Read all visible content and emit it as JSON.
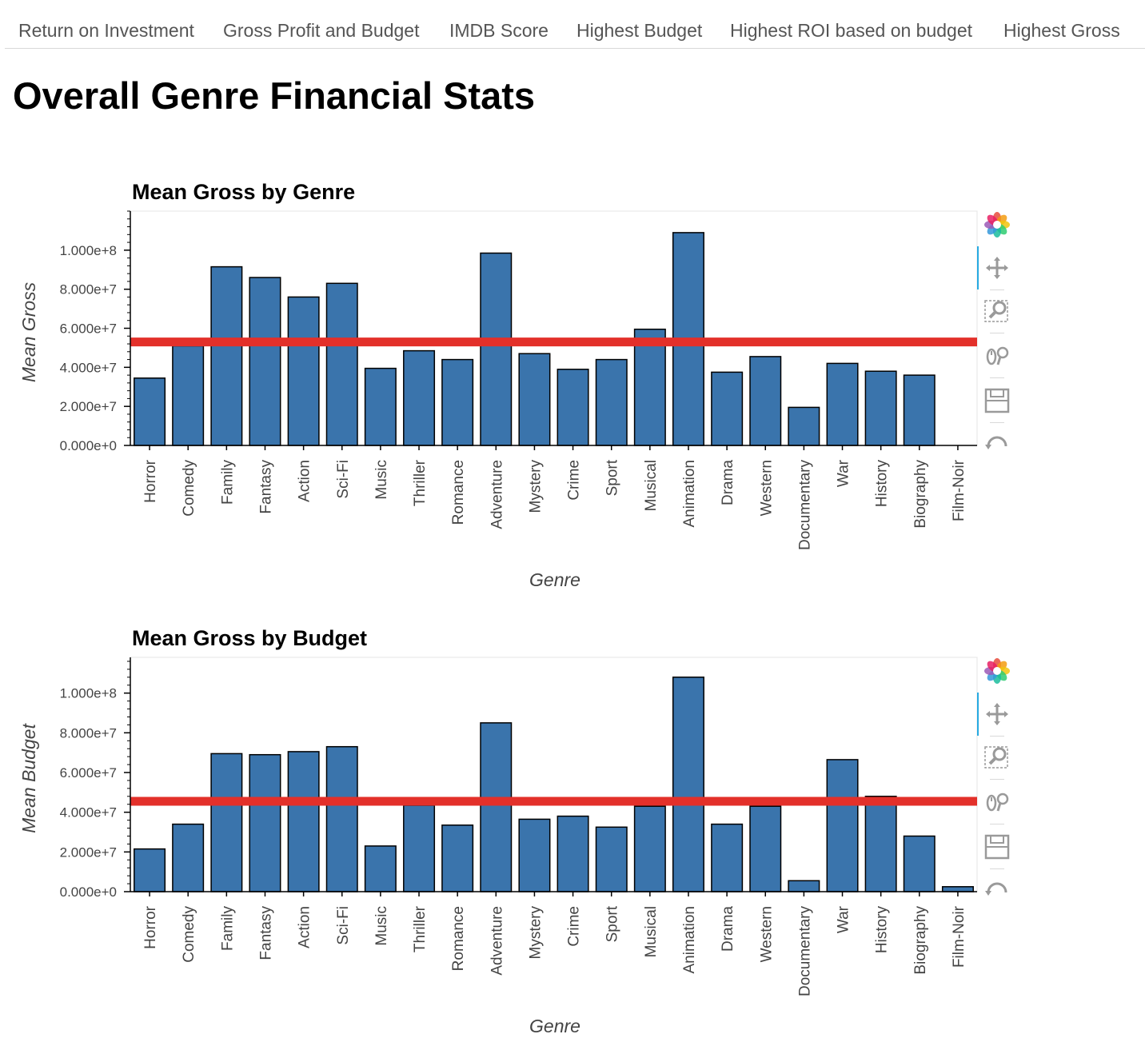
{
  "nav": {
    "tabs": [
      {
        "label": "Return on Investment"
      },
      {
        "label": "Gross Profit and Budget"
      },
      {
        "label": "IMDB Score"
      },
      {
        "label": "Highest Budget"
      },
      {
        "label": "Highest ROI based on budget"
      },
      {
        "label": "Highest Gross"
      }
    ]
  },
  "page": {
    "title": "Overall Genre Financial Stats"
  },
  "toolbar_icons": [
    "bokeh-logo-icon",
    "pan-icon",
    "box-zoom-icon",
    "wheel-zoom-icon",
    "save-icon",
    "reset-icon"
  ],
  "colors": {
    "bar_fill": "#3a74ac",
    "bar_stroke": "#000000",
    "mean_line": "#e3302a",
    "tab_text": "#555555"
  },
  "chart_data": [
    {
      "type": "bar",
      "title": "Mean Gross by Genre",
      "xlabel": "Genre",
      "ylabel": "Mean Gross",
      "categories": [
        "Horror",
        "Comedy",
        "Family",
        "Fantasy",
        "Action",
        "Sci-Fi",
        "Music",
        "Thriller",
        "Romance",
        "Adventure",
        "Mystery",
        "Crime",
        "Sport",
        "Musical",
        "Animation",
        "Drama",
        "Western",
        "Documentary",
        "War",
        "History",
        "Biography",
        "Film-Noir"
      ],
      "values": [
        34500000,
        51000000,
        91500000,
        86000000,
        76000000,
        83000000,
        39500000,
        48500000,
        44000000,
        98500000,
        47000000,
        39000000,
        44000000,
        59500000,
        109000000,
        37500000,
        45500000,
        19500000,
        42000000,
        38000000,
        36000000,
        0
      ],
      "reference_line": 53000000,
      "ylim": [
        0,
        120000000
      ],
      "yticks": [
        "0.000e+0",
        "2.000e+7",
        "4.000e+7",
        "6.000e+7",
        "8.000e+7",
        "1.000e+8"
      ],
      "ytick_values": [
        0,
        20000000,
        40000000,
        60000000,
        80000000,
        100000000
      ],
      "grid": false,
      "legend": "none"
    },
    {
      "type": "bar",
      "title": "Mean Gross by Budget",
      "xlabel": "Genre",
      "ylabel": "Mean Budget",
      "categories": [
        "Horror",
        "Comedy",
        "Family",
        "Fantasy",
        "Action",
        "Sci-Fi",
        "Music",
        "Thriller",
        "Romance",
        "Adventure",
        "Mystery",
        "Crime",
        "Sport",
        "Musical",
        "Animation",
        "Drama",
        "Western",
        "Documentary",
        "War",
        "History",
        "Biography",
        "Film-Noir"
      ],
      "values": [
        21500000,
        34000000,
        69500000,
        69000000,
        70500000,
        73000000,
        23000000,
        43500000,
        33500000,
        85000000,
        36500000,
        38000000,
        32500000,
        43000000,
        108000000,
        34000000,
        43000000,
        5500000,
        66500000,
        48000000,
        28000000,
        2500000
      ],
      "reference_line": 45500000,
      "ylim": [
        0,
        118000000
      ],
      "yticks": [
        "0.000e+0",
        "2.000e+7",
        "4.000e+7",
        "6.000e+7",
        "8.000e+7",
        "1.000e+8"
      ],
      "ytick_values": [
        0,
        20000000,
        40000000,
        60000000,
        80000000,
        100000000
      ],
      "grid": false,
      "legend": "none"
    }
  ]
}
